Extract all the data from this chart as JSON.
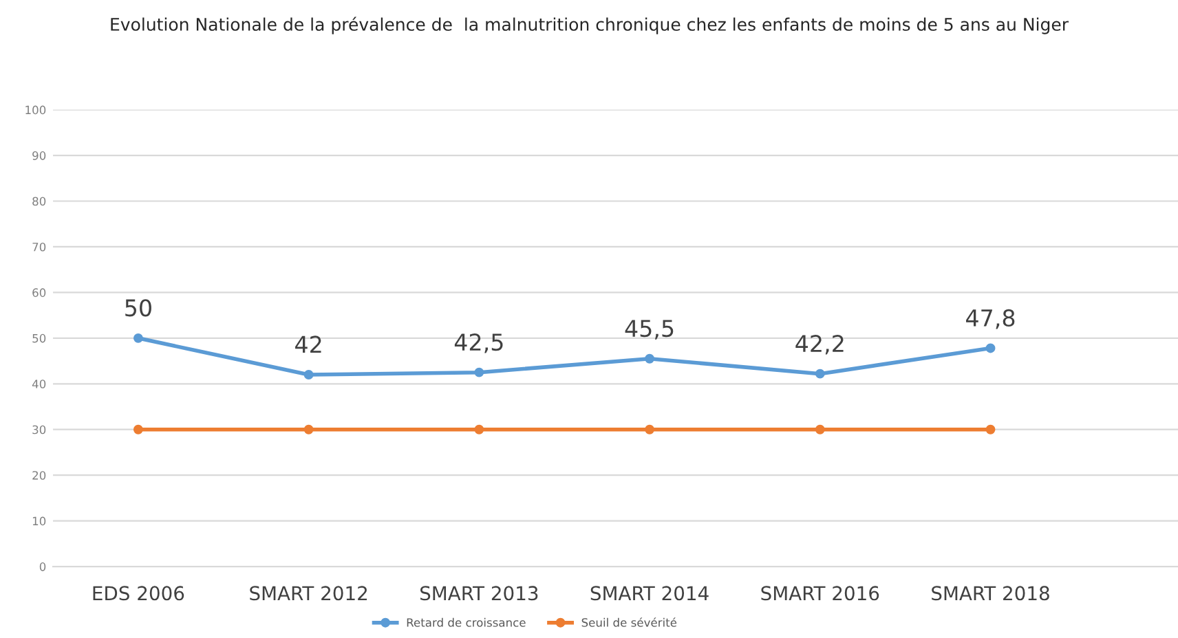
{
  "chart_data": {
    "type": "line",
    "title": "Evolution Nationale de la prévalence de  la malnutrition chronique chez les enfants de moins de 5 ans au Niger",
    "categories": [
      "EDS 2006",
      "SMART 2012",
      "SMART 2013",
      "SMART 2014",
      "SMART 2016",
      "SMART 2018"
    ],
    "series": [
      {
        "name": "Retard de croissance",
        "color": "#5b9bd5",
        "values": [
          50,
          42,
          42.5,
          45.5,
          42.2,
          47.8
        ],
        "value_labels": [
          "50",
          "42",
          "42,5",
          "45,5",
          "42,2",
          "47,8"
        ]
      },
      {
        "name": "Seuil de sévérité",
        "color": "#ed7d31",
        "values": [
          30,
          30,
          30,
          30,
          30,
          30
        ]
      }
    ],
    "ylim": [
      0,
      100
    ],
    "yticks": [
      0,
      10,
      20,
      30,
      40,
      50,
      60,
      70,
      80,
      90,
      100
    ],
    "grid": "y",
    "legend": "bottom",
    "marker": "circle",
    "line_style": "solid"
  }
}
